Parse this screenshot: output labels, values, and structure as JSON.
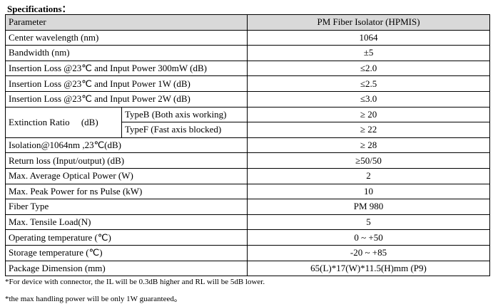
{
  "header": {
    "title": "Specifications："
  },
  "table": {
    "columns": [
      "Parameter",
      "PM Fiber Isolator (HPMIS)"
    ],
    "rows": [
      {
        "parameter": "Center wavelength (nm)",
        "value": "1064"
      },
      {
        "parameter": "Bandwidth (nm)",
        "value": "±5"
      },
      {
        "parameter": "Insertion Loss @23℃ and Input Power 300mW (dB)",
        "value": "≤2.0"
      },
      {
        "parameter": "Insertion Loss @23℃ and Input Power 1W (dB)",
        "value": "≤2.5"
      },
      {
        "parameter": "Insertion Loss @23℃ and Input Power 2W (dB)",
        "value": "≤3.0"
      },
      {
        "parameter": "Extinction Ratio     (dB)",
        "types": [
          {
            "name": "TypeB (Both axis working)",
            "value": "≥ 20"
          },
          {
            "name": "TypeF (Fast axis blocked)",
            "value": "≥ 22"
          }
        ]
      },
      {
        "parameter": "Isolation@1064nm ,23℃(dB)",
        "value": "≥ 28"
      },
      {
        "parameter": "Return loss (Input/output) (dB)",
        "value": "≥50/50"
      },
      {
        "parameter": "Max. Average Optical Power (W)",
        "value": "2"
      },
      {
        "parameter": "Max. Peak Power for ns Pulse (kW)",
        "value": "10"
      },
      {
        "parameter": "Fiber Type",
        "value": "PM 980"
      },
      {
        "parameter": "Max. Tensile Load(N)",
        "value": "5"
      },
      {
        "parameter": "Operating temperature (℃)",
        "value": "0 ~ +50"
      },
      {
        "parameter": "Storage temperature (℃)",
        "value": "-20 ~ +85"
      },
      {
        "parameter": "Package Dimension (mm)",
        "value": "65(L)*17(W)*11.5(H)mm (P9)"
      }
    ]
  },
  "notes": [
    "*For device with connector, the IL will be 0.3dB higher   and RL will be 5dB lower.",
    "*the max handling power will be only 1W guaranteed。"
  ]
}
